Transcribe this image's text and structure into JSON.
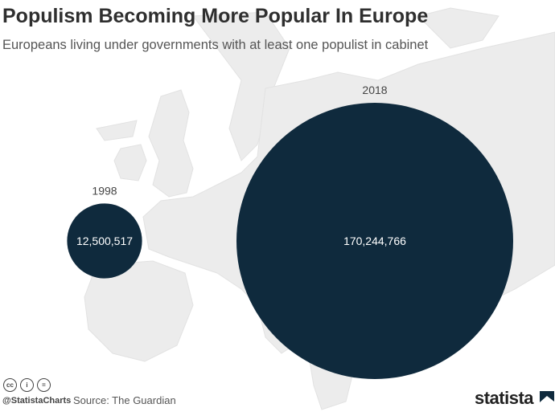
{
  "title": "Populism Becoming More Popular In Europe",
  "subtitle": "Europeans living under governments with at least one populist in cabinet",
  "chart_data": {
    "type": "bubble",
    "categories": [
      "1998",
      "2018"
    ],
    "values": [
      12500517,
      170244766
    ],
    "value_labels": [
      "12,500,517",
      "170,244,766"
    ],
    "bubble_color": "#0f2a3d",
    "label_color": "#ffffff"
  },
  "footer": {
    "handle": "@StatistaCharts",
    "source": "Source: The Guardian",
    "logo": "statista",
    "license_icons": [
      "cc-icon",
      "by-icon",
      "nd-icon"
    ]
  }
}
